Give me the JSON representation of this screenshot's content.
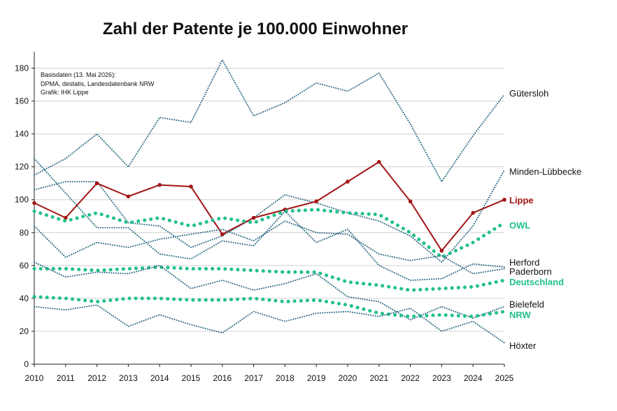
{
  "chart_data": {
    "type": "line",
    "title": "Zahl der Patente je 100.000 Einwohner",
    "xlabel": "",
    "ylabel": "",
    "x": [
      2010,
      2011,
      2012,
      2013,
      2014,
      2015,
      2016,
      2017,
      2018,
      2019,
      2020,
      2021,
      2022,
      2023,
      2024,
      2025
    ],
    "ylim": [
      0,
      190
    ],
    "yticks": [
      0,
      20,
      40,
      60,
      80,
      100,
      120,
      140,
      160,
      180
    ],
    "grid": true,
    "notes": [
      "Basisdaten (13. Mai 2026):",
      "DPMA, destatis, Landesdatenbank NRW",
      "Grafik: IHK Lippe"
    ],
    "series": [
      {
        "name": "Gütersloh",
        "style": "district",
        "color": "#2f6b84",
        "values": [
          115,
          125,
          140,
          120,
          150,
          147,
          185,
          151,
          159,
          171,
          166,
          177,
          146,
          111,
          139,
          164
        ]
      },
      {
        "name": "Minden-Lübbecke",
        "style": "district",
        "color": "#2f6b84",
        "values": [
          106,
          111,
          111,
          86,
          84,
          71,
          78,
          89,
          103,
          98,
          92,
          87,
          78,
          62,
          84,
          118
        ]
      },
      {
        "name": "Lippe",
        "style": "highlight",
        "color": "#a31515",
        "values": [
          98,
          89,
          110,
          102,
          109,
          108,
          79,
          89,
          94,
          99,
          111,
          123,
          99,
          69,
          92,
          100
        ]
      },
      {
        "name": "OWL",
        "style": "region",
        "color": "#20c08b",
        "values": [
          93,
          87,
          92,
          86,
          89,
          84,
          89,
          86,
          93,
          94,
          92,
          91,
          80,
          65,
          74,
          86
        ]
      },
      {
        "name": "Herford",
        "style": "district",
        "color": "#2f6b84",
        "values": [
          125,
          104,
          83,
          83,
          67,
          64,
          75,
          72,
          93,
          74,
          82,
          60,
          51,
          52,
          61,
          59
        ]
      },
      {
        "name": "Paderborn",
        "style": "district",
        "color": "#2f6b84",
        "values": [
          84,
          65,
          74,
          71,
          76,
          79,
          82,
          75,
          87,
          80,
          79,
          67,
          63,
          66,
          55,
          58
        ]
      },
      {
        "name": "Deutschland",
        "style": "region",
        "color": "#20c08b",
        "values": [
          58,
          58,
          57,
          58,
          59,
          58,
          58,
          57,
          56,
          56,
          50,
          48,
          45,
          46,
          47,
          51
        ]
      },
      {
        "name": "Bielefeld",
        "style": "district",
        "color": "#2f6b84",
        "values": [
          62,
          53,
          56,
          55,
          60,
          46,
          51,
          45,
          49,
          55,
          41,
          38,
          27,
          35,
          28,
          35
        ]
      },
      {
        "name": "NRW",
        "style": "region",
        "color": "#20c08b",
        "values": [
          41,
          40,
          38,
          40,
          40,
          39,
          39,
          40,
          38,
          39,
          36,
          31,
          29,
          30,
          29,
          32
        ]
      },
      {
        "name": "Höxter",
        "style": "district",
        "color": "#2f6b84",
        "values": [
          35,
          33,
          36,
          23,
          30,
          24,
          19,
          32,
          26,
          31,
          32,
          29,
          34,
          20,
          26,
          13
        ]
      }
    ]
  }
}
